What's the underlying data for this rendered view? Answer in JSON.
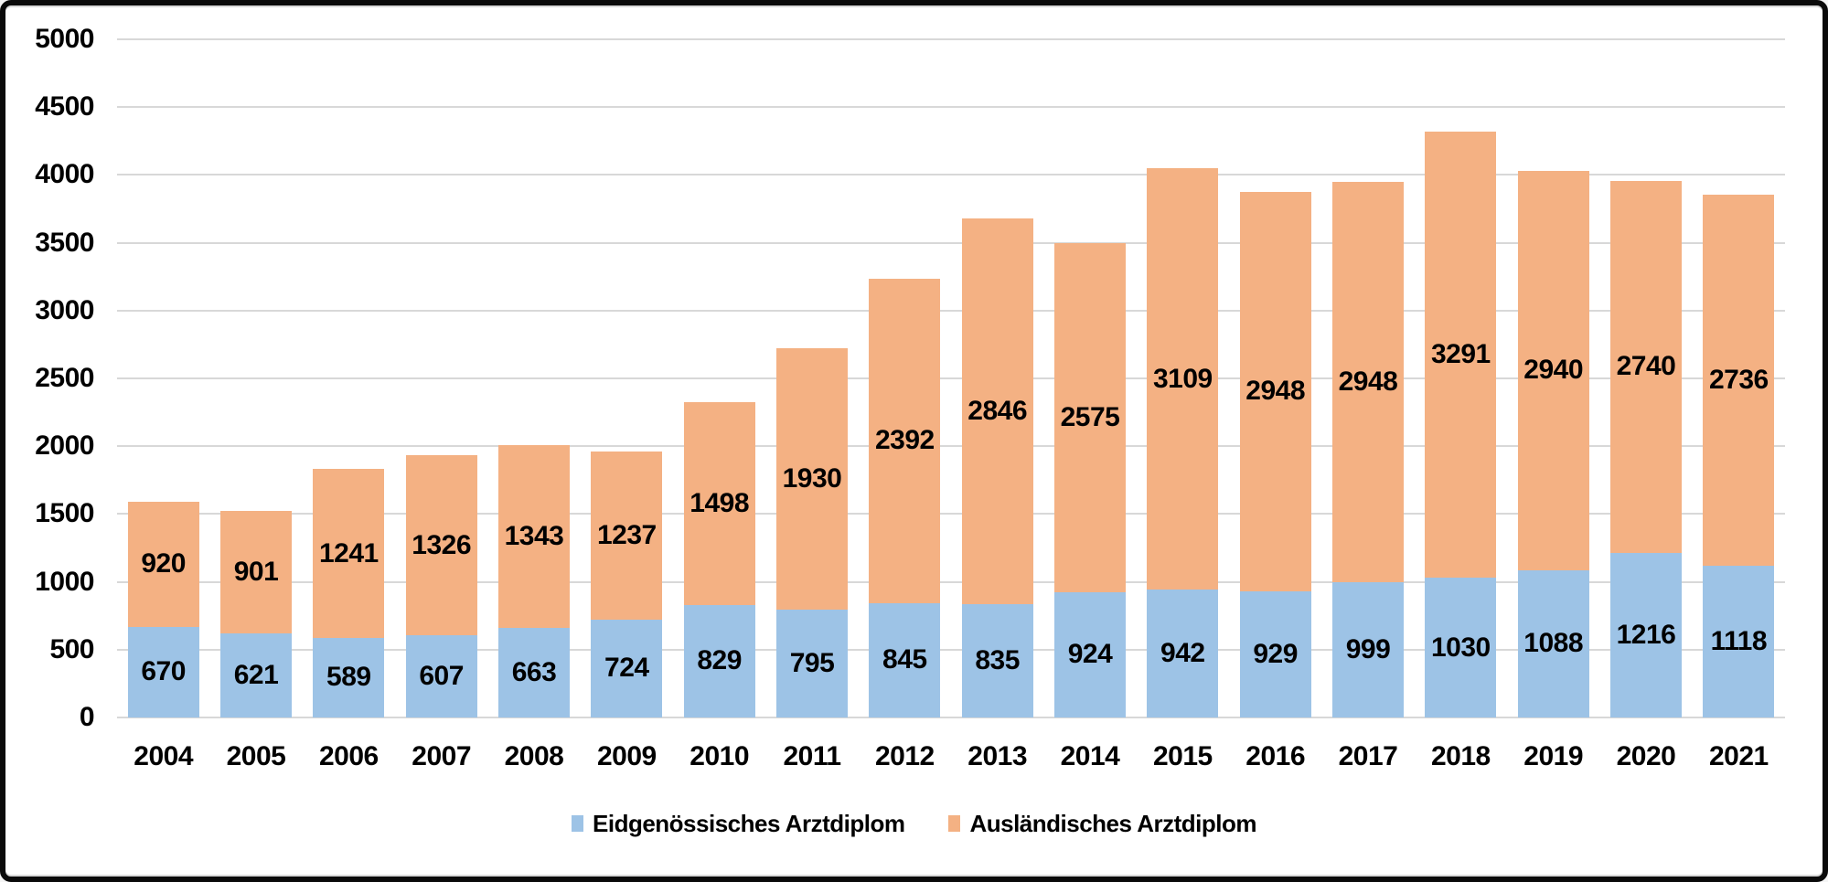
{
  "chart_data": {
    "type": "bar",
    "stacked": true,
    "title": "",
    "xlabel": "",
    "ylabel": "",
    "categories": [
      "2004",
      "2005",
      "2006",
      "2007",
      "2008",
      "2009",
      "2010",
      "2011",
      "2012",
      "2013",
      "2014",
      "2015",
      "2016",
      "2017",
      "2018",
      "2019",
      "2020",
      "2021"
    ],
    "series": [
      {
        "name": "Eidgenössisches Arztdiplom",
        "color": "#9DC3E6",
        "values": [
          670,
          621,
          589,
          607,
          663,
          724,
          829,
          795,
          845,
          835,
          924,
          942,
          929,
          999,
          1030,
          1088,
          1216,
          1118
        ]
      },
      {
        "name": "Ausländisches Arztdiplom",
        "color": "#F4B183",
        "values": [
          920,
          901,
          1241,
          1326,
          1343,
          1237,
          1498,
          1930,
          2392,
          2846,
          2575,
          3109,
          2948,
          2948,
          3291,
          2940,
          2740,
          2736
        ]
      }
    ],
    "ylim": [
      0,
      5000
    ],
    "ytick_step": 500,
    "ytick_labels": [
      "0",
      "500",
      "1000",
      "1500",
      "2000",
      "2500",
      "3000",
      "3500",
      "4000",
      "4500",
      "5000"
    ],
    "grid": true,
    "gridline_color": "#d8d8d8",
    "data_labels": true,
    "legend_position": "bottom"
  }
}
